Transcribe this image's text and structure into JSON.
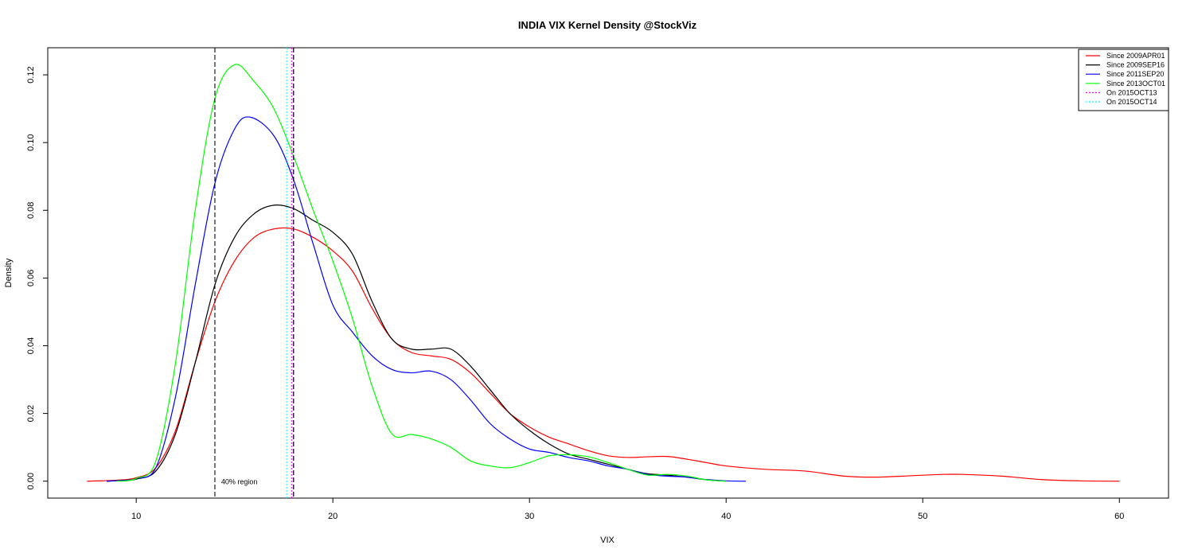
{
  "chart_data": {
    "type": "line",
    "title": "INDIA VIX Kernel Density @StockViz",
    "xlabel": "VIX",
    "ylabel": "Density",
    "xlim": [
      5.5,
      62.5
    ],
    "ylim": [
      -0.005,
      0.128
    ],
    "x_ticks": [
      10,
      20,
      30,
      40,
      50,
      60
    ],
    "x_tick_labels": [
      "10",
      "20",
      "30",
      "40",
      "50",
      "60"
    ],
    "y_ticks": [
      0.0,
      0.02,
      0.04,
      0.06,
      0.08,
      0.1,
      0.12
    ],
    "y_tick_labels": [
      "0.00",
      "0.02",
      "0.04",
      "0.06",
      "0.08",
      "0.10",
      "0.12"
    ],
    "grid": false,
    "legend_position": "top-right",
    "series": [
      {
        "name": "Since 2009APR01",
        "color": "#ff0000",
        "points": [
          [
            7.5,
            0
          ],
          [
            9,
            0.0003
          ],
          [
            10,
            0.001
          ],
          [
            11,
            0.004
          ],
          [
            12,
            0.015
          ],
          [
            13,
            0.035
          ],
          [
            14,
            0.053
          ],
          [
            15,
            0.065
          ],
          [
            16,
            0.072
          ],
          [
            17,
            0.0745
          ],
          [
            18,
            0.0745
          ],
          [
            19,
            0.072
          ],
          [
            20,
            0.068
          ],
          [
            21,
            0.062
          ],
          [
            22,
            0.051
          ],
          [
            23,
            0.042
          ],
          [
            24,
            0.038
          ],
          [
            25,
            0.037
          ],
          [
            26,
            0.036
          ],
          [
            27,
            0.032
          ],
          [
            28,
            0.026
          ],
          [
            29,
            0.02
          ],
          [
            30,
            0.016
          ],
          [
            31,
            0.013
          ],
          [
            32,
            0.011
          ],
          [
            33,
            0.009
          ],
          [
            34,
            0.0075
          ],
          [
            35,
            0.007
          ],
          [
            36,
            0.0072
          ],
          [
            37,
            0.0073
          ],
          [
            38,
            0.0065
          ],
          [
            39,
            0.0055
          ],
          [
            40,
            0.0045
          ],
          [
            42,
            0.0035
          ],
          [
            44,
            0.003
          ],
          [
            46,
            0.0015
          ],
          [
            47.5,
            0.0012
          ],
          [
            49,
            0.0015
          ],
          [
            51,
            0.002
          ],
          [
            52,
            0.002
          ],
          [
            54,
            0.0015
          ],
          [
            56,
            0.0005
          ],
          [
            58,
            0.0001
          ],
          [
            60,
            0
          ]
        ]
      },
      {
        "name": "Since 2009SEP16",
        "color": "#000000",
        "points": [
          [
            8.5,
            0
          ],
          [
            9.5,
            0.0003
          ],
          [
            10,
            0.0006
          ],
          [
            11,
            0.003
          ],
          [
            12,
            0.014
          ],
          [
            13,
            0.035
          ],
          [
            14,
            0.058
          ],
          [
            15,
            0.072
          ],
          [
            16,
            0.079
          ],
          [
            17,
            0.0815
          ],
          [
            18,
            0.0805
          ],
          [
            19,
            0.077
          ],
          [
            20,
            0.0735
          ],
          [
            21,
            0.067
          ],
          [
            22,
            0.053
          ],
          [
            23,
            0.042
          ],
          [
            24,
            0.039
          ],
          [
            25,
            0.039
          ],
          [
            26,
            0.039
          ],
          [
            27,
            0.034
          ],
          [
            28,
            0.027
          ],
          [
            29,
            0.02
          ],
          [
            30,
            0.015
          ],
          [
            31,
            0.011
          ],
          [
            32,
            0.008
          ],
          [
            33,
            0.0065
          ],
          [
            34,
            0.005
          ],
          [
            35,
            0.0035
          ],
          [
            36,
            0.0022
          ],
          [
            37,
            0.0018
          ],
          [
            38,
            0.0012
          ],
          [
            39,
            0.0004
          ],
          [
            40,
            0
          ]
        ]
      },
      {
        "name": "Since 2011SEP20",
        "color": "#0000ff",
        "points": [
          [
            8.5,
            0
          ],
          [
            9.5,
            0.0003
          ],
          [
            10,
            0.0008
          ],
          [
            11,
            0.004
          ],
          [
            12,
            0.025
          ],
          [
            13,
            0.058
          ],
          [
            14,
            0.088
          ],
          [
            15,
            0.104
          ],
          [
            15.8,
            0.1075
          ],
          [
            17,
            0.102
          ],
          [
            18,
            0.089
          ],
          [
            19,
            0.07
          ],
          [
            20,
            0.052
          ],
          [
            21,
            0.044
          ],
          [
            22,
            0.037
          ],
          [
            23,
            0.033
          ],
          [
            24,
            0.032
          ],
          [
            25,
            0.0325
          ],
          [
            26,
            0.03
          ],
          [
            27,
            0.024
          ],
          [
            28,
            0.017
          ],
          [
            29,
            0.0125
          ],
          [
            30,
            0.0095
          ],
          [
            31,
            0.0085
          ],
          [
            32,
            0.007
          ],
          [
            33,
            0.006
          ],
          [
            34,
            0.0045
          ],
          [
            35,
            0.0035
          ],
          [
            36,
            0.002
          ],
          [
            37,
            0.0015
          ],
          [
            38,
            0.0012
          ],
          [
            39,
            0.0005
          ],
          [
            40,
            0.0001
          ],
          [
            41,
            0
          ]
        ]
      },
      {
        "name": "Since 2013OCT01",
        "color": "#00ff00",
        "points": [
          [
            9,
            0
          ],
          [
            10,
            0.0008
          ],
          [
            11,
            0.006
          ],
          [
            12,
            0.035
          ],
          [
            13,
            0.08
          ],
          [
            14,
            0.113
          ],
          [
            15,
            0.123
          ],
          [
            16,
            0.118
          ],
          [
            17,
            0.11
          ],
          [
            18,
            0.096
          ],
          [
            19,
            0.08
          ],
          [
            20,
            0.065
          ],
          [
            21,
            0.048
          ],
          [
            22,
            0.028
          ],
          [
            23,
            0.014
          ],
          [
            24,
            0.0138
          ],
          [
            25,
            0.0125
          ],
          [
            26,
            0.01
          ],
          [
            27,
            0.006
          ],
          [
            28,
            0.0045
          ],
          [
            29,
            0.004
          ],
          [
            30,
            0.0055
          ],
          [
            31,
            0.0075
          ],
          [
            32,
            0.0078
          ],
          [
            33,
            0.0072
          ],
          [
            34,
            0.0055
          ],
          [
            35,
            0.0035
          ],
          [
            36,
            0.0018
          ],
          [
            37,
            0.002
          ],
          [
            38,
            0.0015
          ],
          [
            39,
            0.0004
          ],
          [
            40,
            0
          ]
        ]
      }
    ],
    "vlines": [
      {
        "name": "On 2015OCT13",
        "x": 17.9,
        "color": "#ff00ff",
        "style": "dotted"
      },
      {
        "name": "On 2015OCT14",
        "x": 17.65,
        "color": "#00ffff",
        "style": "dotted"
      },
      {
        "x": 14.0,
        "color": "#0000ff",
        "style": "dashed"
      },
      {
        "x": 14.0,
        "color": "#000000",
        "style": "dashed"
      },
      {
        "x": 18.0,
        "color": "#0000ff",
        "style": "dashed"
      },
      {
        "x": 18.0,
        "color": "#000000",
        "style": "dashed"
      }
    ],
    "annotation": {
      "text": "40% region",
      "x": 14.2,
      "y": 0.0
    }
  }
}
